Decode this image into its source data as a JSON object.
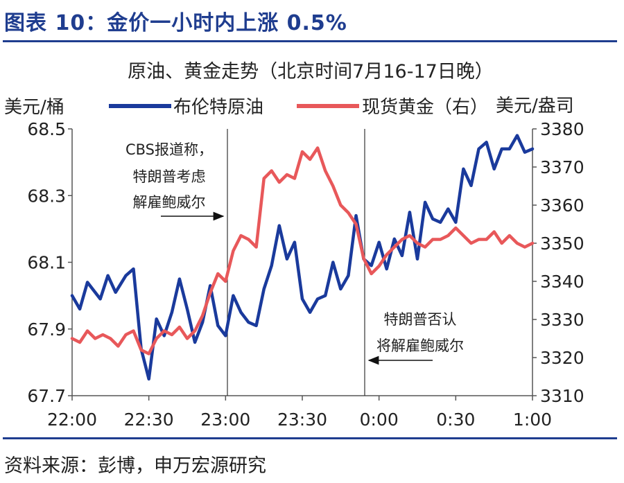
{
  "figure_title": "图表 10：金价一小时内上涨 0.5%",
  "source": "资料来源：彭博，申万宏源研究",
  "colors": {
    "brent": "#1a3a9c",
    "gold": "#e8585a",
    "title": "#1f3d8f"
  },
  "chart_data": {
    "type": "line",
    "title": "原油、黄金走势（北京时间7月16-17日晚）",
    "y_left_unit": "美元/桶",
    "y_right_unit": "美元/盎司",
    "x_ticks": [
      "22:00",
      "22:30",
      "23:00",
      "23:30",
      "0:00",
      "0:30",
      "1:00"
    ],
    "y_left_ticks": [
      "68.5",
      "68.3",
      "68.1",
      "67.9",
      "67.7"
    ],
    "y_right_ticks": [
      "3380",
      "3370",
      "3360",
      "3350",
      "3340",
      "3330",
      "3320",
      "3310"
    ],
    "y_left_lim": [
      67.7,
      68.5
    ],
    "y_right_lim": [
      3310,
      3380
    ],
    "x_lim_minutes_from_22": [
      0,
      180
    ],
    "grid": false,
    "legend_position": "top",
    "series": [
      {
        "name": "布伦特原油",
        "axis": "left",
        "color": "#1a3a9c",
        "x": [
          0,
          3,
          6,
          8,
          11,
          14,
          17,
          21,
          24,
          27,
          30,
          33,
          36,
          39,
          42,
          45,
          48,
          51,
          54,
          57,
          60,
          63,
          66,
          69,
          72,
          75,
          78,
          81,
          84,
          87,
          90,
          93,
          96,
          99,
          102,
          105,
          108,
          111,
          114,
          117,
          120,
          123,
          126,
          129,
          132,
          135,
          138,
          141,
          144,
          147,
          150,
          153,
          156,
          159,
          162,
          165,
          168,
          171,
          174,
          177,
          180
        ],
        "y": [
          68.0,
          67.96,
          68.04,
          68.02,
          67.99,
          68.06,
          68.01,
          68.06,
          68.08,
          67.84,
          67.75,
          67.93,
          67.88,
          67.95,
          68.05,
          67.96,
          67.86,
          67.92,
          68.03,
          67.91,
          67.88,
          68.0,
          67.95,
          67.92,
          67.91,
          68.02,
          68.09,
          68.21,
          68.11,
          68.16,
          67.99,
          67.95,
          67.99,
          68.0,
          68.1,
          68.02,
          68.06,
          68.24,
          68.11,
          68.09,
          68.16,
          68.08,
          68.17,
          68.12,
          68.25,
          68.11,
          68.28,
          68.23,
          68.22,
          68.26,
          68.22,
          68.38,
          68.33,
          68.44,
          68.46,
          68.38,
          68.44,
          68.44,
          68.48,
          68.43,
          68.44
        ]
      },
      {
        "name": "现货黄金（右）",
        "axis": "right",
        "color": "#e8585a",
        "x": [
          0,
          3,
          6,
          9,
          12,
          15,
          18,
          21,
          24,
          27,
          30,
          33,
          36,
          39,
          42,
          45,
          48,
          51,
          54,
          57,
          60,
          63,
          66,
          69,
          72,
          75,
          78,
          81,
          84,
          87,
          90,
          93,
          96,
          99,
          102,
          105,
          108,
          111,
          114,
          117,
          120,
          123,
          126,
          129,
          132,
          135,
          138,
          141,
          144,
          147,
          150,
          153,
          156,
          159,
          162,
          165,
          168,
          171,
          174,
          177,
          180
        ],
        "y": [
          3325,
          3324,
          3327,
          3325,
          3326,
          3325,
          3323,
          3326,
          3327,
          3322,
          3321,
          3325,
          3327,
          3326,
          3328,
          3325,
          3327,
          3331,
          3337,
          3342,
          3340,
          3348,
          3352,
          3351,
          3349,
          3367,
          3369,
          3366,
          3368,
          3367,
          3374,
          3372,
          3375,
          3369,
          3365,
          3360,
          3358,
          3355,
          3346,
          3342,
          3344,
          3347,
          3349,
          3351,
          3352,
          3350,
          3349,
          3351,
          3351,
          3352,
          3354,
          3352,
          3350,
          3351,
          3351,
          3353,
          3350,
          3352,
          3350,
          3349,
          3350
        ]
      }
    ],
    "event_lines": [
      {
        "x": 0,
        "label_lines": [
          "CBS报道称，",
          "特朗普考虑",
          "解雇鲍威尔"
        ],
        "time": "23:00"
      },
      {
        "x": 0,
        "label_lines": [
          "特朗普否认",
          "将解雇鲍威尔"
        ],
        "time": "0:00"
      }
    ]
  }
}
